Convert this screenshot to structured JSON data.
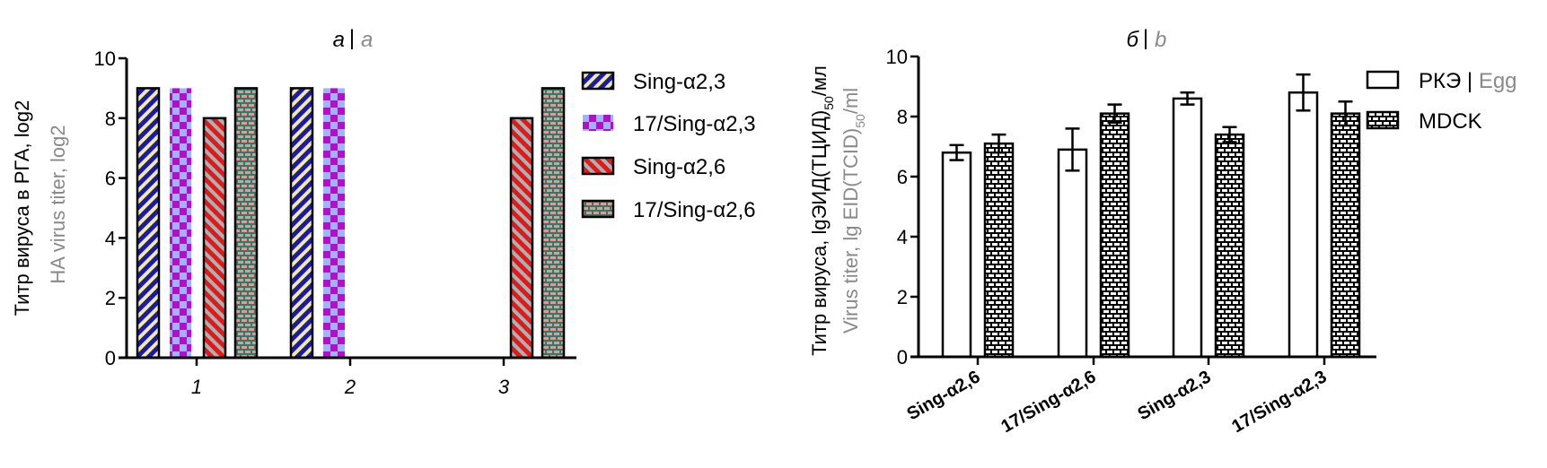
{
  "colors": {
    "sing23_fg": "#1a1aa6",
    "sing23_bg": "#f2eaa6",
    "s17_23_a": "#b40fc8",
    "s17_23_b": "#9fb3ff",
    "sing26_fg": "#e01a1a",
    "sing26_bg": "#a8b4b4",
    "s17_26_mortar": "#2f7a6a",
    "s17_26_brick": "#e09a94",
    "mdck_brick": "#ffffff",
    "mdck_mortar": "#000000",
    "alt_text": "#8a8a8a"
  },
  "chart_data": [
    {
      "type": "bar",
      "title": {
        "main": "a",
        "separator": "|",
        "alt": "a"
      },
      "ylabel": {
        "main": "Титр вируса в РГА, log2",
        "alt": "HA virus titer, log2"
      },
      "xlabel": "",
      "ylim": [
        0,
        10
      ],
      "yticks": [
        "0",
        "2",
        "4",
        "6",
        "8",
        "10"
      ],
      "categories": [
        "1",
        "2",
        "3"
      ],
      "legend_position": "right",
      "series": [
        {
          "name": "Sing-α2,3",
          "pattern": "diagonal-stripes-blue",
          "values": [
            9,
            9,
            null
          ]
        },
        {
          "name": "17/Sing-α2,3",
          "pattern": "checker-magenta",
          "values": [
            9,
            9,
            null
          ]
        },
        {
          "name": "Sing-α2,6",
          "pattern": "diagonal-stripes-red",
          "values": [
            8,
            null,
            8
          ]
        },
        {
          "name": "17/Sing-α2,6",
          "pattern": "brick-teal",
          "values": [
            9,
            null,
            9
          ]
        }
      ]
    },
    {
      "type": "bar",
      "title": {
        "main": "б",
        "separator": "|",
        "alt": "b"
      },
      "ylabel": {
        "main": "Титр вируса, lgЭИД(ТЦИД)",
        "main_sub": "50",
        "main_tail": "/мл",
        "alt": "Virus titer, lg EID(TCID)",
        "alt_sub": "50",
        "alt_tail": "/ml"
      },
      "xlabel": "",
      "ylim": [
        0,
        10
      ],
      "yticks": [
        "0",
        "2",
        "4",
        "6",
        "8",
        "10"
      ],
      "categories": [
        "Sing-α2,6",
        "17/Sing-α2,6",
        "Sing-α2,3",
        "17/Sing-α2,3"
      ],
      "legend_position": "top-right",
      "series": [
        {
          "name": "РКЭ",
          "name_alt": "Egg",
          "pattern": "open",
          "values": [
            6.8,
            6.9,
            8.6,
            8.8
          ],
          "errors": [
            0.25,
            0.7,
            0.2,
            0.6
          ]
        },
        {
          "name": "MDCK",
          "pattern": "brick-black",
          "values": [
            7.1,
            8.1,
            7.4,
            8.1
          ],
          "errors": [
            0.3,
            0.3,
            0.25,
            0.4
          ]
        }
      ]
    }
  ]
}
